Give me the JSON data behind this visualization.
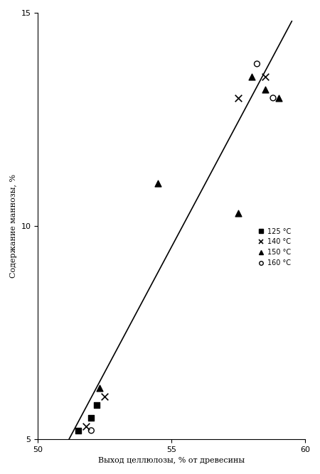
{
  "title": "",
  "xlabel": "Выход целлюлозы, % от древесины",
  "ylabel": "Содержание маннозы, %",
  "xlim": [
    50,
    60
  ],
  "ylim": [
    5,
    15
  ],
  "xticks": [
    50,
    55,
    60
  ],
  "yticks": [
    5,
    10,
    15
  ],
  "legend_labels": [
    "125 °C",
    "140 °C",
    "150 °C",
    "160 °C"
  ],
  "legend_markers": [
    "s",
    "x",
    "^",
    "o"
  ],
  "data_125": [
    [
      51.5,
      5.2
    ],
    [
      52.0,
      5.5
    ],
    [
      52.2,
      5.8
    ]
  ],
  "data_140": [
    [
      51.8,
      5.3
    ],
    [
      52.5,
      6.0
    ],
    [
      57.5,
      13.0
    ],
    [
      58.5,
      13.5
    ]
  ],
  "data_150": [
    [
      52.3,
      6.2
    ],
    [
      54.5,
      11.0
    ],
    [
      57.5,
      10.3
    ],
    [
      58.0,
      13.5
    ],
    [
      58.5,
      13.2
    ],
    [
      59.0,
      13.0
    ]
  ],
  "data_160": [
    [
      52.0,
      5.2
    ],
    [
      58.2,
      13.8
    ],
    [
      58.8,
      13.0
    ]
  ],
  "trendline_x": [
    51.0,
    59.5
  ],
  "trendline_y": [
    4.8,
    14.8
  ],
  "figsize": [
    4.5,
    6.67
  ],
  "dpi": 100,
  "bg_color": "#ffffff"
}
